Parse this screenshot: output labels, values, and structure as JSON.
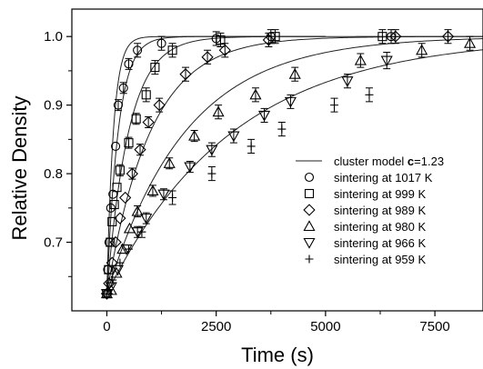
{
  "chart_data": {
    "type": "scatter",
    "xlabel": "Time (s)",
    "ylabel": "Relative Density",
    "xlim": [
      -800,
      8600
    ],
    "ylim": [
      0.6,
      1.04
    ],
    "x_ticks": [
      {
        "value": 0,
        "label": "0"
      },
      {
        "value": 2500,
        "label": "2500"
      },
      {
        "value": 5000,
        "label": "5000"
      },
      {
        "value": 7500,
        "label": "7500"
      }
    ],
    "y_ticks": [
      {
        "value": 0.7,
        "label": "0.7"
      },
      {
        "value": 0.8,
        "label": "0.8"
      },
      {
        "value": 0.9,
        "label": "0.9"
      },
      {
        "value": 1.0,
        "label": "1.0"
      }
    ],
    "x_minor_ticks": [
      1250,
      3750,
      6250
    ],
    "y_minor_ticks": [
      0.65,
      0.75,
      0.85,
      0.95
    ],
    "grid": false,
    "legend_position": "right",
    "model": {
      "name": "cluster model ",
      "name_bold": "c",
      "name_suffix": "=1.23",
      "start_density": 0.625,
      "final_density": 1.0,
      "tau": [
        150,
        260,
        500,
        1000,
        1800,
        2900
      ],
      "end_x": [
        5000,
        5000,
        8600,
        8600,
        8600,
        8600
      ]
    },
    "series": [
      {
        "name": "sintering at 1017 K",
        "marker": "circle",
        "x": [
          0,
          20,
          50,
          90,
          140,
          200,
          260,
          380,
          500,
          700,
          1250,
          2500,
          3750,
          6500
        ],
        "y": [
          0.625,
          0.66,
          0.7,
          0.75,
          0.77,
          0.84,
          0.9,
          0.925,
          0.96,
          0.98,
          0.99,
          0.997,
          1.0,
          1.0
        ],
        "err": [
          0,
          0,
          0,
          0,
          0,
          0,
          0.008,
          0.008,
          0.008,
          0.01,
          0.01,
          0.01,
          0.01,
          0.01
        ]
      },
      {
        "name": "sintering at 999 K",
        "marker": "square",
        "x": [
          0,
          40,
          80,
          120,
          170,
          230,
          300,
          500,
          670,
          900,
          1100,
          1500,
          2600,
          3850,
          6300
        ],
        "y": [
          0.625,
          0.66,
          0.7,
          0.73,
          0.755,
          0.78,
          0.805,
          0.845,
          0.88,
          0.915,
          0.955,
          0.98,
          0.995,
          1.0,
          1.0
        ],
        "err": [
          0,
          0,
          0,
          0,
          0,
          0,
          0.008,
          0.008,
          0.008,
          0.01,
          0.01,
          0.01,
          0.01,
          0.01,
          0.01
        ]
      },
      {
        "name": "sintering at 989 K",
        "marker": "diamond",
        "x": [
          0,
          50,
          120,
          200,
          300,
          420,
          580,
          760,
          950,
          1200,
          1800,
          2300,
          2700,
          3700,
          6600,
          7800
        ],
        "y": [
          0.625,
          0.64,
          0.67,
          0.7,
          0.735,
          0.765,
          0.8,
          0.835,
          0.875,
          0.9,
          0.945,
          0.97,
          0.98,
          0.995,
          1.0,
          1.0
        ],
        "err": [
          0,
          0,
          0,
          0,
          0,
          0,
          0.008,
          0.008,
          0.008,
          0.01,
          0.01,
          0.01,
          0.01,
          0.01,
          0.01,
          0.01
        ]
      },
      {
        "name": "sintering at 980 K",
        "marker": "triangle-up",
        "x": [
          0,
          100,
          220,
          360,
          520,
          700,
          1050,
          1430,
          2000,
          2550,
          3400,
          4300,
          5800,
          7200,
          8300
        ],
        "y": [
          0.625,
          0.63,
          0.655,
          0.69,
          0.72,
          0.745,
          0.775,
          0.815,
          0.855,
          0.89,
          0.915,
          0.945,
          0.965,
          0.98,
          0.99
        ],
        "err": [
          0,
          0,
          0,
          0,
          0,
          0.008,
          0.008,
          0.008,
          0.008,
          0.01,
          0.01,
          0.01,
          0.01,
          0.01,
          0.01
        ]
      },
      {
        "name": "sintering at 966 K",
        "marker": "triangle-down",
        "x": [
          0,
          100,
          250,
          450,
          700,
          900,
          1300,
          1900,
          2400,
          2900,
          3600,
          4200,
          5500,
          6400
        ],
        "y": [
          0.625,
          0.635,
          0.66,
          0.69,
          0.715,
          0.735,
          0.77,
          0.81,
          0.835,
          0.855,
          0.885,
          0.905,
          0.935,
          0.965
        ],
        "err": [
          0,
          0,
          0,
          0,
          0.008,
          0.008,
          0.008,
          0.008,
          0.01,
          0.01,
          0.01,
          0.01,
          0.01,
          0.012
        ]
      },
      {
        "name": "sintering at 959 K",
        "marker": "plus",
        "x": [
          0,
          130,
          300,
          500,
          800,
          1500,
          2400,
          3300,
          4000,
          5200,
          6000
        ],
        "y": [
          0.625,
          0.645,
          0.67,
          0.69,
          0.715,
          0.765,
          0.8,
          0.84,
          0.865,
          0.9,
          0.915
        ],
        "err": [
          0,
          0,
          0,
          0,
          0.008,
          0.01,
          0.01,
          0.01,
          0.01,
          0.01,
          0.01
        ]
      }
    ]
  }
}
